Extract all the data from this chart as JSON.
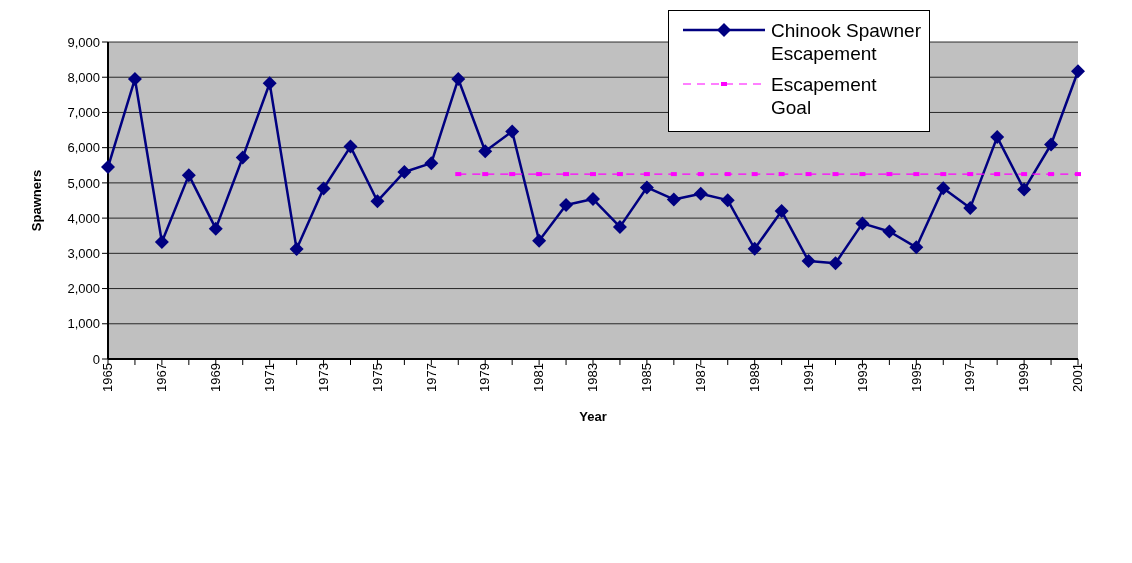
{
  "chart_data": {
    "type": "line",
    "xlabel": "Year",
    "ylabel": "Spawners",
    "categories": [
      "1965",
      null,
      "1967",
      null,
      "1969",
      null,
      "1971",
      null,
      "1973",
      null,
      "1975",
      null,
      "1977",
      null,
      "1979",
      null,
      "1981",
      null,
      "1983",
      null,
      "1985",
      null,
      "1987",
      null,
      "1989",
      null,
      "1991",
      null,
      "1993",
      null,
      "1995",
      null,
      "1997",
      null,
      "1999",
      null,
      "2001"
    ],
    "series": [
      {
        "name": "Chinook Spawner Escapement",
        "color": "#000080",
        "marker": "diamond",
        "line_style": "solid",
        "values": [
          5450,
          7950,
          3320,
          5220,
          3700,
          5720,
          7830,
          3120,
          4840,
          6030,
          4480,
          5310,
          5560,
          7950,
          5900,
          6460,
          3360,
          4370,
          4540,
          3750,
          4870,
          4530,
          4690,
          4510,
          3130,
          4200,
          2780,
          2720,
          3850,
          3620,
          3170,
          4850,
          4290,
          6300,
          4810,
          6090,
          8170
        ]
      },
      {
        "name": "Escapement Goal",
        "color": "#ff00ff",
        "marker": "square",
        "line_style": "dashed",
        "values": [
          null,
          null,
          null,
          null,
          null,
          null,
          null,
          null,
          null,
          null,
          null,
          null,
          null,
          5250,
          5250,
          5250,
          5250,
          5250,
          5250,
          5250,
          5250,
          5250,
          5250,
          5250,
          5250,
          5250,
          5250,
          5250,
          5250,
          5250,
          5250,
          5250,
          5250,
          5250,
          5250,
          5250,
          5250
        ]
      }
    ],
    "ylim": [
      0,
      9000
    ],
    "yticks": [
      0,
      {
        "value": 1000,
        "label": "1,000"
      },
      {
        "value": 2000,
        "label": "2,000"
      },
      {
        "value": 3000,
        "label": "3,000"
      },
      {
        "value": 4000,
        "label": "4,000"
      },
      {
        "value": 5000,
        "label": "5,000"
      },
      {
        "value": 6000,
        "label": "6,000"
      },
      {
        "value": 7000,
        "label": "7,000"
      },
      {
        "value": 8000,
        "label": "8,000"
      },
      {
        "value": 9000,
        "label": "9,000"
      }
    ],
    "grid": "y",
    "legend": "top right"
  }
}
